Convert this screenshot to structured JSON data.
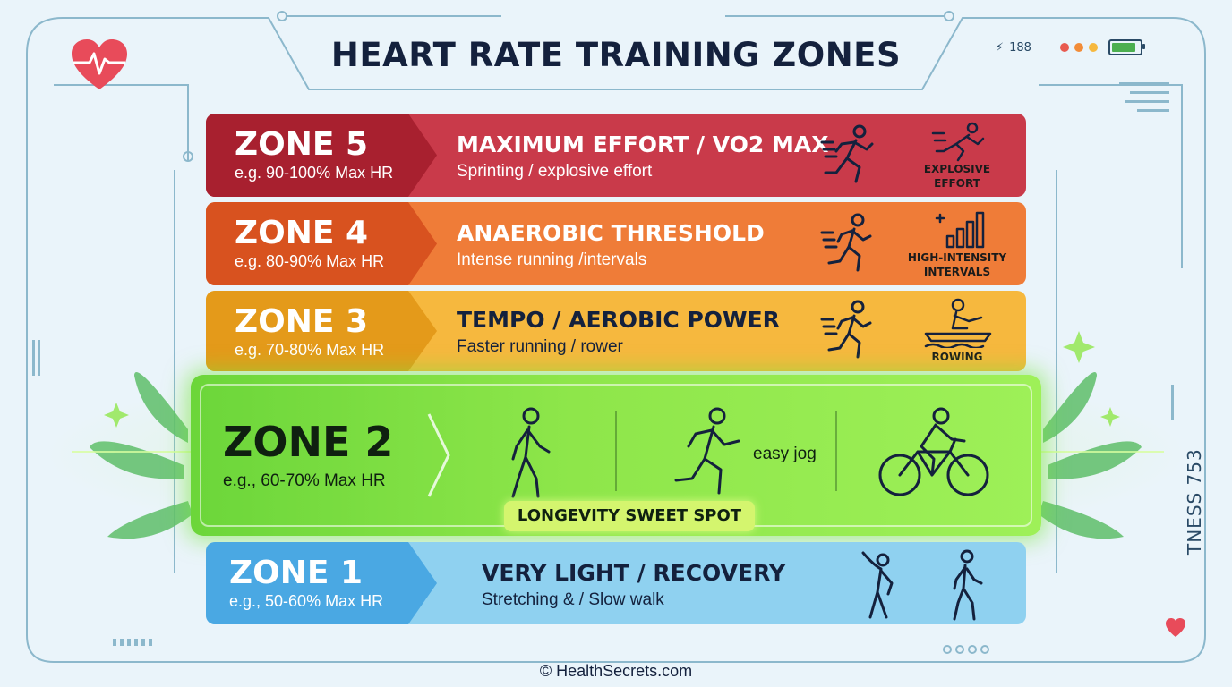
{
  "title": "HEART RATE TRAINING ZONES",
  "hud": {
    "readout": "188",
    "status_dots": [
      "#e85a4f",
      "#f28c38",
      "#f6b83e"
    ],
    "battery_color": "#4caf50"
  },
  "zones": [
    {
      "name": "ZONE 5",
      "range": "e.g. 90-100% Max HR",
      "heading": "MAXIMUM EFFORT / VO2 MAX",
      "desc": "Sprinting / explosive effort",
      "caption": "EXPLOSIVE EFFORT",
      "icons": [
        "sprinter-icon",
        "sprint-start-icon"
      ],
      "color": "#c93a4a"
    },
    {
      "name": "ZONE 4",
      "range": "e.g. 80-90% Max HR",
      "heading": "ANAEROBIC THRESHOLD",
      "desc": "Intense running /intervals",
      "caption": "HIGH-INTENSITY INTERVALS",
      "icons": [
        "runner-icon",
        "bar-chart-icon"
      ],
      "color": "#ef7c38"
    },
    {
      "name": "ZONE 3",
      "range": "e.g. 70-80% Max HR",
      "heading": "TEMPO / AEROBIC POWER",
      "desc": "Faster running / rower",
      "caption": "ROWING",
      "icons": [
        "runner-icon",
        "rowing-icon"
      ],
      "color": "#f6b83e"
    },
    {
      "name": "ZONE 2",
      "range": "e.g., 60-70% Max HR",
      "activity": "easy jog",
      "badge": "LONGEVITY SWEET SPOT",
      "icons": [
        "walker-icon",
        "jogger-icon",
        "cyclist-icon"
      ],
      "color": "#8ee64a"
    },
    {
      "name": "ZONE 1",
      "range": "e.g., 50-60% Max HR",
      "heading": "VERY LIGHT / RECOVERY",
      "desc": "Stretching & / Slow walk",
      "icons": [
        "stretching-icon",
        "walker-icon"
      ],
      "color": "#8fd1f0"
    }
  ],
  "footer": {
    "copyright": "© HealthSecrets.com"
  },
  "side_label": "TNESS 753"
}
